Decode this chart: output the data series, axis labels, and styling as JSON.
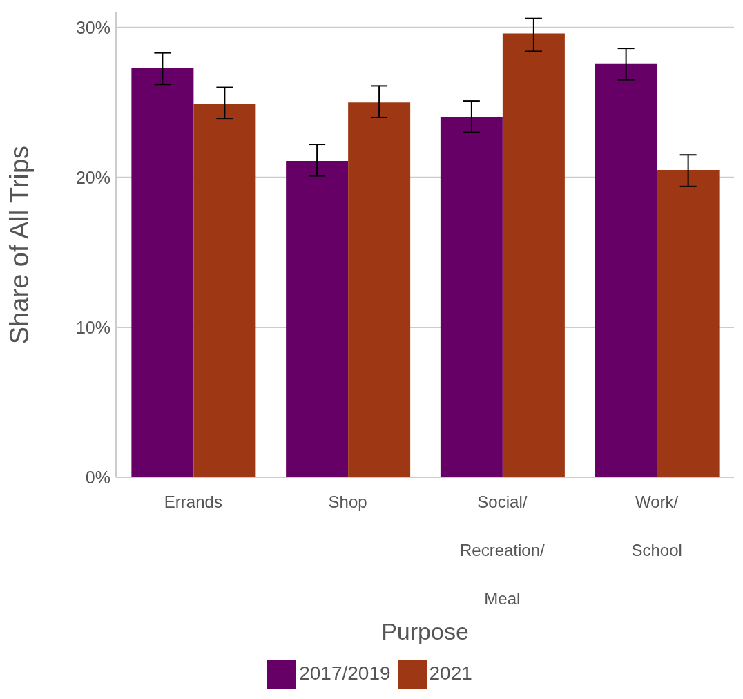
{
  "chart_data": {
    "type": "bar",
    "xlabel": "Purpose",
    "ylabel": "Share of All Trips",
    "categories": [
      "Errands",
      "Shop",
      "Social/Recreation/Meal",
      "Work/School"
    ],
    "series": [
      {
        "name": "2017/2019",
        "color": "#660066",
        "values": [
          27.3,
          21.1,
          24.0,
          27.6
        ],
        "errors": [
          [
            26.2,
            28.3
          ],
          [
            20.1,
            22.2
          ],
          [
            23.0,
            25.1
          ],
          [
            26.5,
            28.6
          ]
        ]
      },
      {
        "name": "2021",
        "color": "#9e3814",
        "values": [
          24.9,
          25.0,
          29.6,
          20.5
        ],
        "errors": [
          [
            23.9,
            26.0
          ],
          [
            24.0,
            26.1
          ],
          [
            28.4,
            30.6
          ],
          [
            19.4,
            21.5
          ]
        ]
      }
    ],
    "ylim": [
      0,
      31
    ],
    "yticks": [
      {
        "value": 0,
        "label": "0%"
      },
      {
        "value": 10,
        "label": "10%"
      },
      {
        "value": 20,
        "label": "20%"
      },
      {
        "value": 30,
        "label": "30%"
      }
    ],
    "grid": "y",
    "legend": "bottom"
  }
}
